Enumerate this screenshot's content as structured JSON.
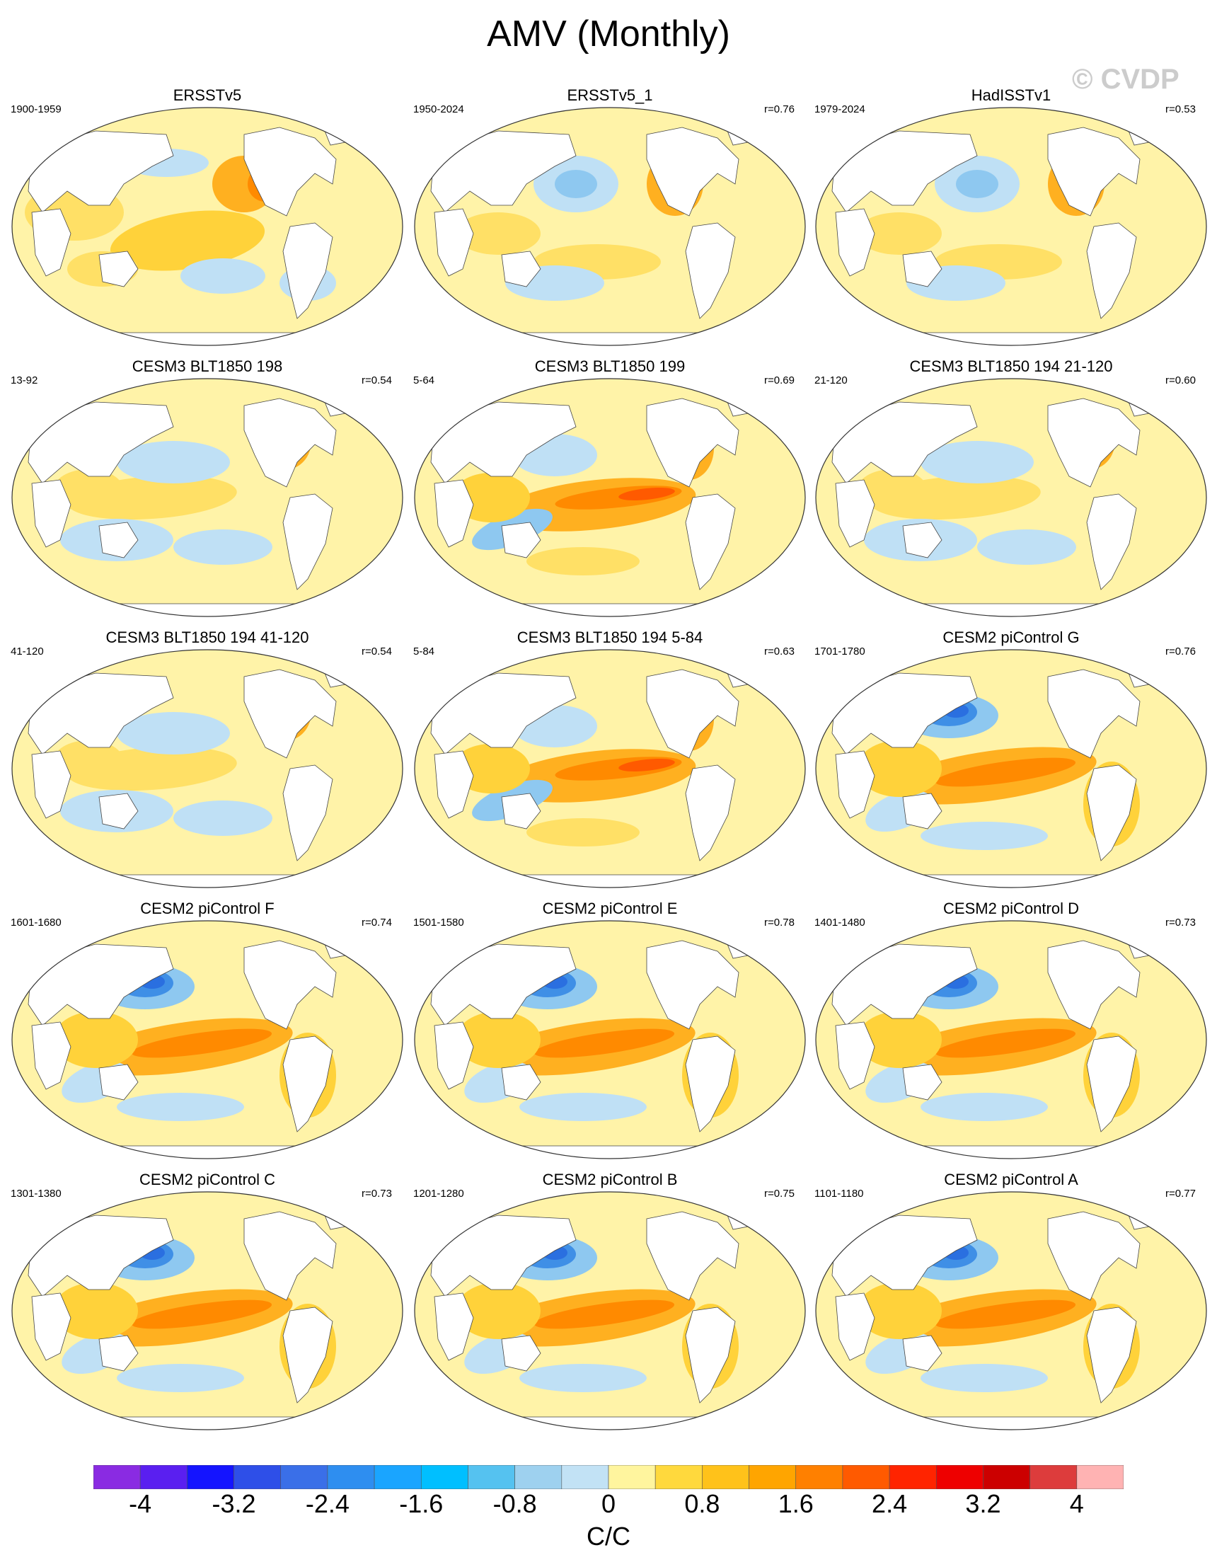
{
  "figure": {
    "title": "AMV (Monthly)",
    "watermark": "© CVDP",
    "units": "C/C"
  },
  "panels": [
    {
      "name": "ERSSTv5",
      "period": "1900-1959",
      "r": "",
      "variant": 0
    },
    {
      "name": "ERSSTv5_1",
      "period": "1950-2024",
      "r": "r=0.76",
      "variant": 1
    },
    {
      "name": "HadISSTv1",
      "period": "1979-2024",
      "r": "r=0.53",
      "variant": 1
    },
    {
      "name": "CESM3 BLT1850 198",
      "period": "13-92",
      "r": "r=0.54",
      "variant": 2
    },
    {
      "name": "CESM3 BLT1850 199",
      "period": "5-64",
      "r": "r=0.69",
      "variant": 3
    },
    {
      "name": "CESM3 BLT1850 194 21-120",
      "period": "21-120",
      "r": "r=0.60",
      "variant": 2
    },
    {
      "name": "CESM3 BLT1850 194 41-120",
      "period": "41-120",
      "r": "r=0.54",
      "variant": 2
    },
    {
      "name": "CESM3 BLT1850 194 5-84",
      "period": "5-84",
      "r": "r=0.63",
      "variant": 3
    },
    {
      "name": "CESM2 piControl G",
      "period": "1701-1780",
      "r": "r=0.76",
      "variant": 4
    },
    {
      "name": "CESM2 piControl F",
      "period": "1601-1680",
      "r": "r=0.74",
      "variant": 4
    },
    {
      "name": "CESM2 piControl E",
      "period": "1501-1580",
      "r": "r=0.78",
      "variant": 4
    },
    {
      "name": "CESM2 piControl D",
      "period": "1401-1480",
      "r": "r=0.73",
      "variant": 4
    },
    {
      "name": "CESM2 piControl C",
      "period": "1301-1380",
      "r": "r=0.73",
      "variant": 4
    },
    {
      "name": "CESM2 piControl B",
      "period": "1201-1280",
      "r": "r=0.75",
      "variant": 4
    },
    {
      "name": "CESM2 piControl A",
      "period": "1101-1180",
      "r": "r=0.77",
      "variant": 4
    }
  ],
  "colorbar": {
    "colors": [
      "#8a2be2",
      "#5a1ff0",
      "#1414ff",
      "#2e4fe8",
      "#3a6fe8",
      "#2e8ef0",
      "#1aa5ff",
      "#00bfff",
      "#55c2f0",
      "#9ed1ef",
      "#c2e2f5",
      "#fff59e",
      "#ffd93d",
      "#ffc21a",
      "#ffa500",
      "#ff8000",
      "#ff5a00",
      "#ff2400",
      "#ee0000",
      "#cc0000",
      "#dd3c3c",
      "#ffb3b3"
    ],
    "labels": [
      "-4",
      "-3.2",
      "-2.4",
      "-1.6",
      "-0.8",
      "0",
      "0.8",
      "1.6",
      "2.4",
      "3.2",
      "4"
    ],
    "label_values": [
      -4,
      -3.2,
      -2.4,
      -1.6,
      -0.8,
      0,
      0.8,
      1.6,
      2.4,
      3.2,
      4
    ],
    "range": [
      -4.4,
      4.4
    ]
  }
}
